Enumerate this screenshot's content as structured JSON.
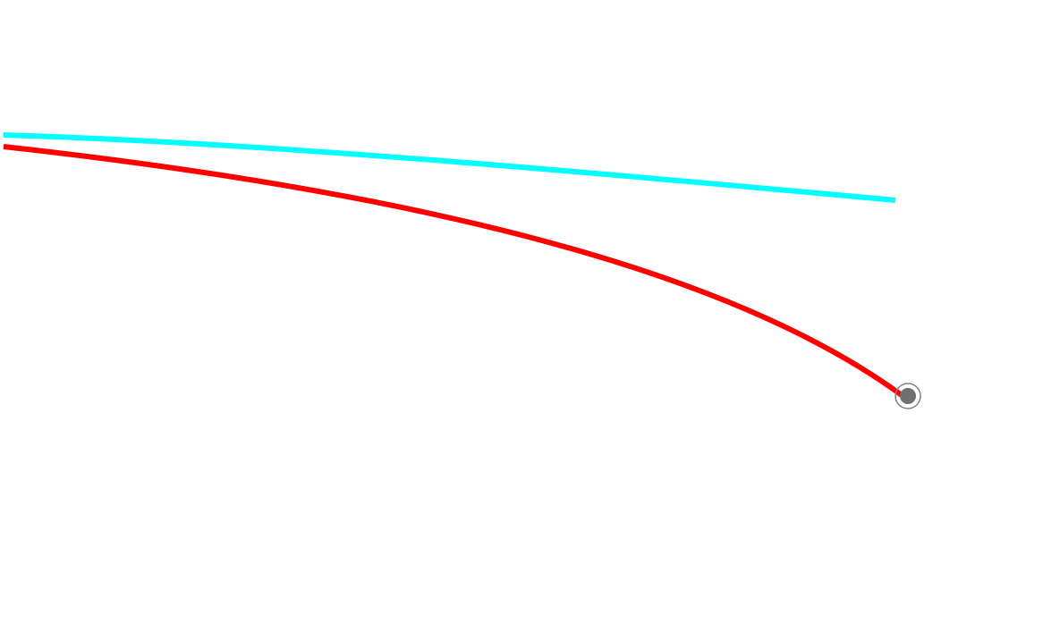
{
  "canvas": {
    "background": "#ffffff"
  },
  "curves": [
    {
      "id": "cyan-line",
      "color": "#00ffff"
    },
    {
      "id": "red-curve",
      "color": "#ff0000"
    }
  ],
  "endpoint_marker": {
    "fill": "#707070",
    "ring": "#808080"
  }
}
